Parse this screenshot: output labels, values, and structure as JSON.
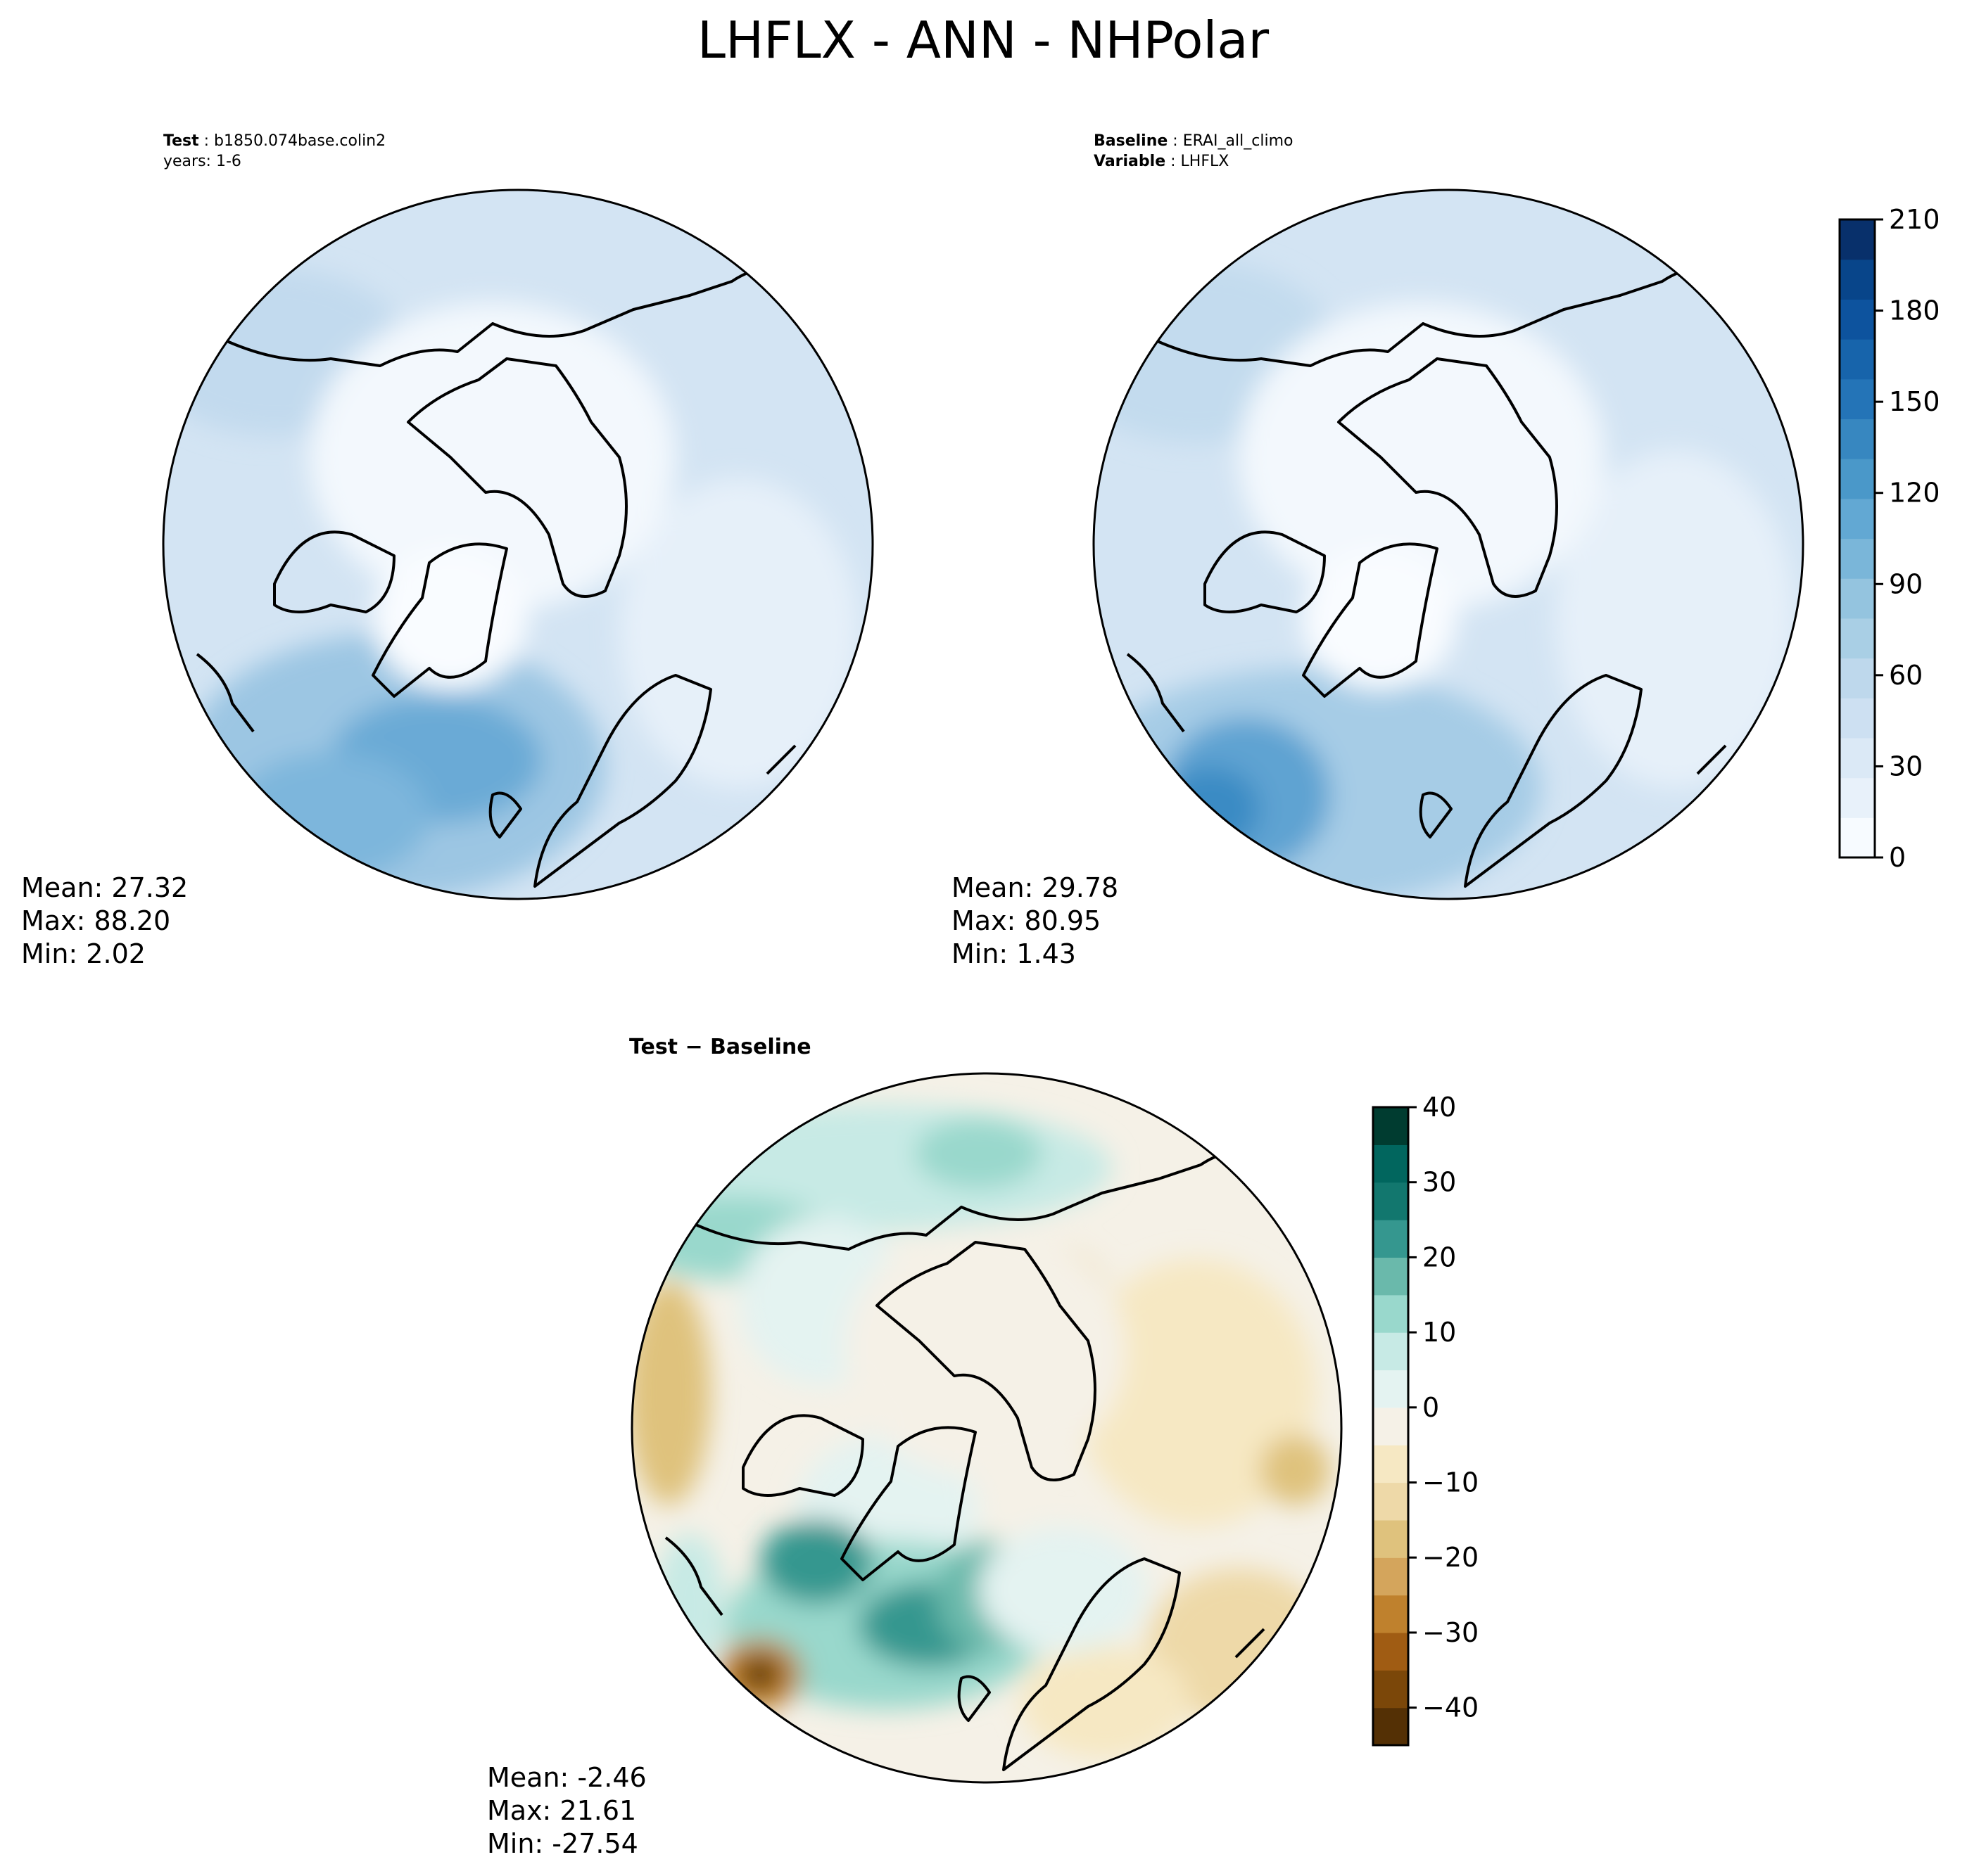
{
  "title": "LHFLX - ANN - NHPolar",
  "colors": {
    "blues": [
      "#f7fbff",
      "#e8f1fa",
      "#dbe9f6",
      "#cde0f2",
      "#bed8ec",
      "#a9cfe5",
      "#94c4df",
      "#7ab6d9",
      "#62a8d3",
      "#4a98c9",
      "#3787c0",
      "#2474b7",
      "#1764ab",
      "#0d539e",
      "#08458a",
      "#08306b"
    ],
    "diverging": [
      "#543005",
      "#7b4709",
      "#a05c13",
      "#bf812d",
      "#d4a55c",
      "#dfc27d",
      "#eed9a8",
      "#f6e8c3",
      "#f5f1e7",
      "#e4f3f1",
      "#c7eae5",
      "#99d8cc",
      "#6ab9ab",
      "#35978f",
      "#12776e",
      "#01665e",
      "#003c30"
    ]
  },
  "panels": [
    {
      "id": "test",
      "header_label": "Test",
      "header_value": "b1850.074base.colin2",
      "header_line2": "years: 1-6",
      "stats": {
        "mean": "Mean: 27.32",
        "max": "Max: 88.20",
        "min": "Min:  2.02"
      }
    },
    {
      "id": "baseline",
      "header_label": "Baseline",
      "header_value": "ERAI_all_climo",
      "header_label2": "Variable",
      "header_value2": "LHFLX",
      "stats": {
        "mean": "Mean: 29.78",
        "max": "Max: 80.95",
        "min": "Min:  1.43"
      }
    },
    {
      "id": "diff",
      "header_label": "Test − Baseline",
      "stats": {
        "mean": "Mean: -2.46",
        "max": "Max: 21.61",
        "min": "Min: -27.54"
      }
    }
  ],
  "chart_data": [
    {
      "type": "heatmap",
      "projection": "north-polar-stereographic",
      "panel": "Test",
      "colorbar": {
        "min": 0,
        "max": 210,
        "ticks": [
          "0",
          "30",
          "60",
          "90",
          "120",
          "150",
          "180",
          "210"
        ]
      }
    },
    {
      "type": "heatmap",
      "projection": "north-polar-stereographic",
      "panel": "Baseline",
      "colorbar": {
        "min": 0,
        "max": 210,
        "ticks": [
          "0",
          "30",
          "60",
          "90",
          "120",
          "150",
          "180",
          "210"
        ]
      }
    },
    {
      "type": "heatmap",
      "projection": "north-polar-stereographic",
      "panel": "Test − Baseline",
      "colorbar": {
        "min": -45,
        "max": 40,
        "ticks": [
          "−40",
          "−30",
          "−20",
          "−10",
          "0",
          "10",
          "20",
          "30",
          "40"
        ]
      }
    }
  ]
}
